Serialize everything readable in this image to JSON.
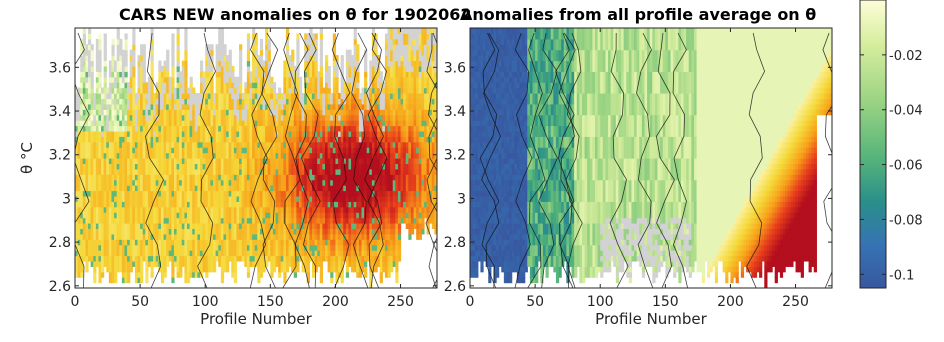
{
  "chart_data": [
    {
      "type": "heatmap",
      "title": "CARS NEW anomalies on θ for 1902062",
      "xlabel": "Profile Number",
      "ylabel": "θ °C",
      "xlim": [
        0,
        278
      ],
      "ylim": [
        2.59,
        3.78
      ],
      "xticks": [
        "0",
        "50",
        "100",
        "150",
        "200",
        "250"
      ],
      "xtick_values": [
        0,
        50,
        100,
        150,
        200,
        250
      ],
      "yticks": [
        "2.6",
        "2.8",
        "3",
        "3.2",
        "3.4",
        "3.6"
      ],
      "ytick_values": [
        2.6,
        2.8,
        3.0,
        3.2,
        3.4,
        3.6
      ],
      "grid": false,
      "description_of_field": "mostly yellow/orange positive anomalies, strongest (dark red) around profiles 170-260 at theta 2.8-3.3"
    },
    {
      "type": "heatmap",
      "title": "Anomalies from all profile average on θ",
      "xlabel": "Profile Number",
      "ylabel": "",
      "xlim": [
        0,
        278
      ],
      "ylim": [
        2.59,
        3.78
      ],
      "xticks": [
        "0",
        "50",
        "100",
        "150",
        "200",
        "250"
      ],
      "xtick_values": [
        0,
        50,
        100,
        150,
        200,
        250
      ],
      "yticks": [
        "2.6",
        "2.8",
        "3",
        "3.2",
        "3.4",
        "3.6"
      ],
      "ytick_values": [
        2.6,
        2.8,
        3.0,
        3.2,
        3.4,
        3.6
      ],
      "grid": false,
      "description_of_field": "negative (blue) anomalies for profiles 0-45, green in the middle, strong positive (red) for profiles 180-278"
    }
  ],
  "colorbar": {
    "ticks": [
      "-0.02",
      "-0.04",
      "-0.06",
      "-0.08",
      "-0.1"
    ],
    "tick_values": [
      -0.02,
      -0.04,
      -0.06,
      -0.08,
      -0.1
    ],
    "range": [
      -0.105,
      0.0
    ],
    "colors": [
      "#fdfdd9",
      "#d7ee9e",
      "#9bd483",
      "#55b47b",
      "#2a8f89",
      "#3673b4",
      "#38579f"
    ]
  },
  "colors": {
    "nan_gray": "#d2d2d2",
    "dark_red": "#b40f1e",
    "red": "#e8401c",
    "orange": "#f7a21a",
    "yellow": "#f5d93a",
    "pale_yellow": "#fbf1a0"
  }
}
